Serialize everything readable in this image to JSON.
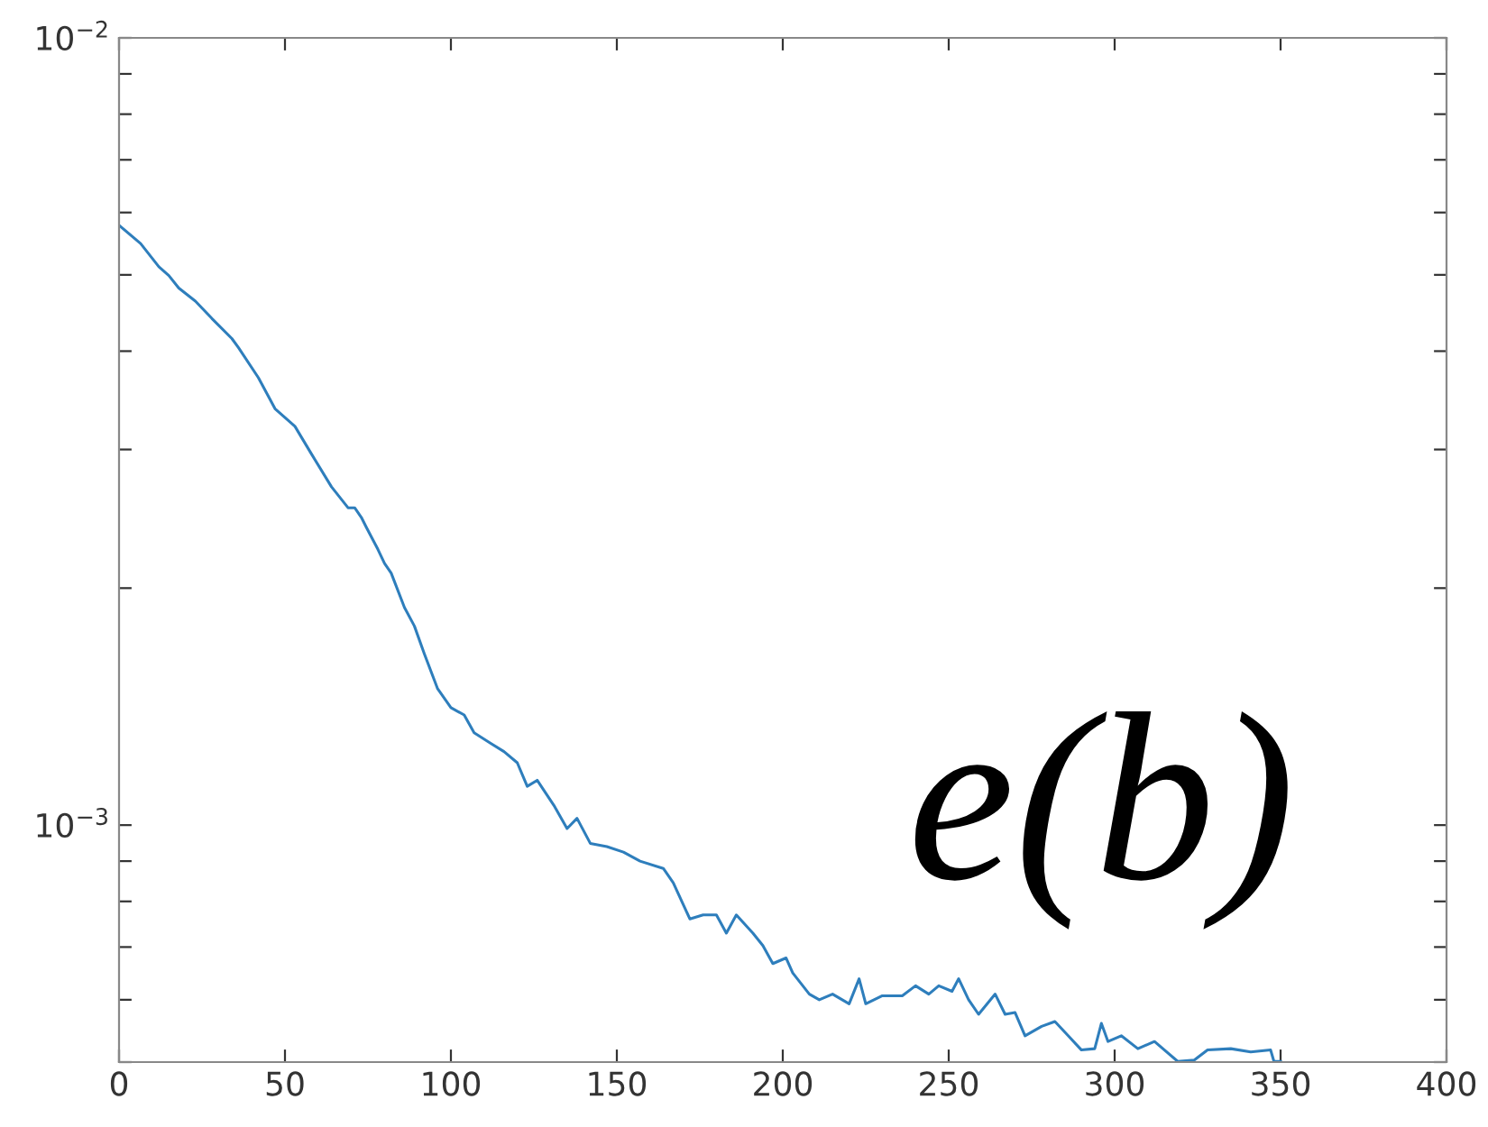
{
  "chart_data": {
    "type": "line",
    "log": "y",
    "grid": false,
    "legend": false,
    "marker": "none",
    "line_style": "solid",
    "xlim": [
      0,
      400
    ],
    "xticks": [
      0,
      50,
      100,
      150,
      200,
      250,
      300,
      350,
      400
    ],
    "ylim": [
      0.0005,
      0.01
    ],
    "yticks": [
      {
        "value": 0.0005,
        "label": null
      },
      {
        "value": 0.0006,
        "label": null
      },
      {
        "value": 0.0007,
        "label": null
      },
      {
        "value": 0.0008,
        "label": null
      },
      {
        "value": 0.0009,
        "label": null
      },
      {
        "value": 0.001,
        "label": "10$^{−3}$"
      },
      {
        "value": 0.002,
        "label": null
      },
      {
        "value": 0.003,
        "label": null
      },
      {
        "value": 0.004,
        "label": null
      },
      {
        "value": 0.005,
        "label": null
      },
      {
        "value": 0.006,
        "label": null
      },
      {
        "value": 0.007,
        "label": null
      },
      {
        "value": 0.008,
        "label": null
      },
      {
        "value": 0.009,
        "label": null
      },
      {
        "value": 0.01,
        "label": "10$^{−2}$"
      }
    ],
    "annotations": [
      "e(b)"
    ],
    "series": [
      {
        "color": "#2e7ebc",
        "x": [
          0,
          6.5,
          12,
          15,
          18,
          23,
          28,
          34,
          36,
          42,
          47,
          53,
          58,
          64,
          69,
          71,
          73,
          74.5,
          78,
          80,
          82,
          86,
          89,
          92,
          96,
          100,
          104,
          107,
          112,
          116,
          120,
          123,
          126,
          131,
          135,
          138,
          142,
          147,
          152,
          157,
          164,
          167,
          172,
          176,
          180,
          183,
          186,
          191,
          194,
          197,
          201,
          203,
          208,
          211,
          215,
          220,
          223,
          225,
          230,
          236,
          240,
          244,
          247,
          251,
          253,
          256,
          259,
          264,
          267,
          270,
          273,
          278,
          282,
          286,
          290,
          294,
          296,
          298,
          302,
          307,
          312,
          319,
          324,
          328,
          335,
          341,
          347,
          348,
          350
        ],
        "values": [
          0.00578,
          0.00548,
          0.00512,
          0.00499,
          0.00481,
          0.00463,
          0.0044,
          0.00415,
          0.00404,
          0.0037,
          0.00338,
          0.00321,
          0.00296,
          0.00269,
          0.00253,
          0.00253,
          0.00246,
          0.00239,
          0.00224,
          0.00215,
          0.00209,
          0.00189,
          0.00179,
          0.00165,
          0.00149,
          0.00141,
          0.00138,
          0.00131,
          0.00127,
          0.00124,
          0.0012,
          0.00112,
          0.00114,
          0.00106,
          0.00099,
          0.00102,
          0.000948,
          0.000939,
          0.000924,
          0.0009,
          0.000881,
          0.000845,
          0.00076,
          0.000769,
          0.000769,
          0.000729,
          0.000769,
          0.000729,
          0.000703,
          0.000667,
          0.000678,
          0.000649,
          0.00061,
          0.0006,
          0.00061,
          0.000593,
          0.000638,
          0.000593,
          0.000607,
          0.000607,
          0.000625,
          0.00061,
          0.000625,
          0.000615,
          0.000638,
          0.0006,
          0.000575,
          0.00061,
          0.000575,
          0.000578,
          0.00054,
          0.000555,
          0.000563,
          0.00054,
          0.000518,
          0.00052,
          0.00056,
          0.000531,
          0.00054,
          0.00052,
          0.000531,
          0.000501,
          0.000503,
          0.000518,
          0.00052,
          0.000515,
          0.000518,
          0.000501,
          0.000501
        ]
      }
    ]
  }
}
